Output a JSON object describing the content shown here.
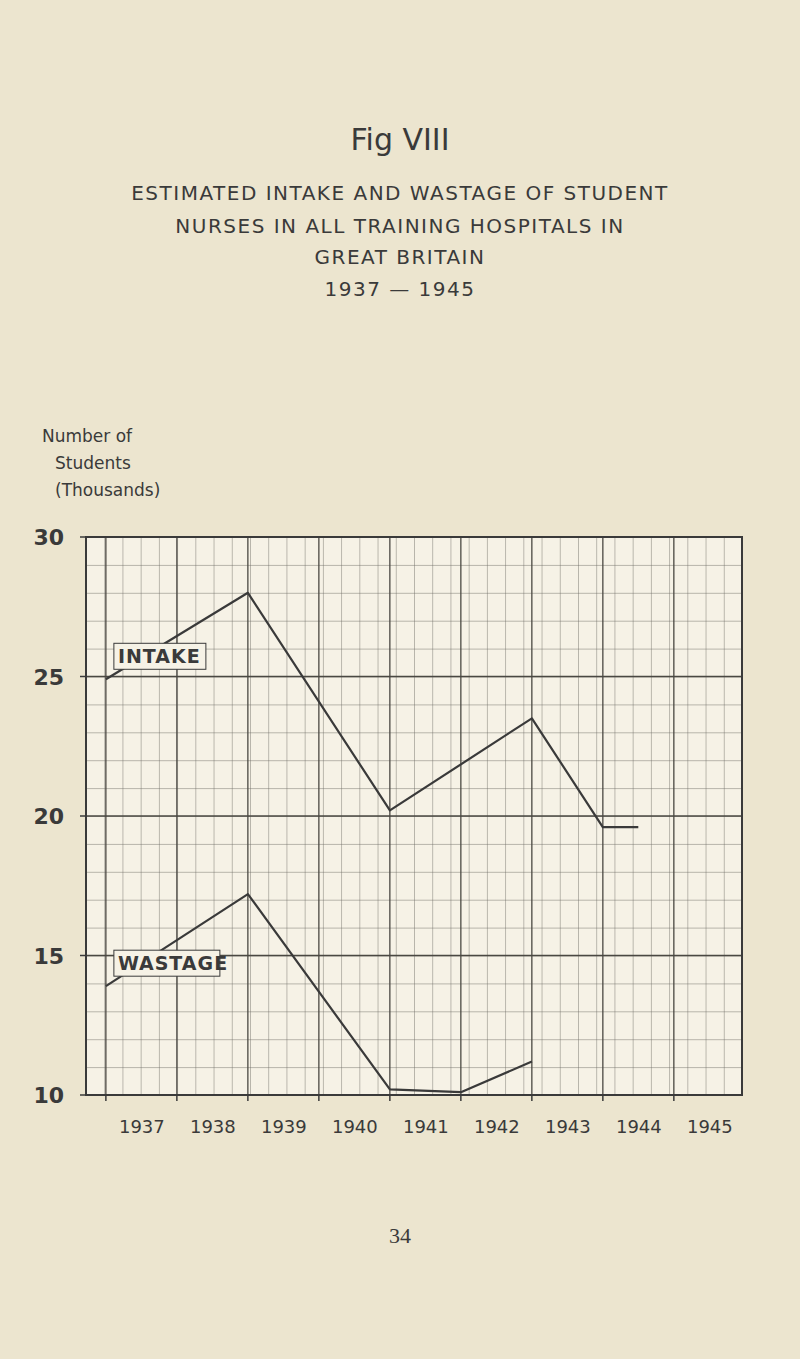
{
  "chart_data": {
    "type": "line",
    "figure_label": "Fig VIII",
    "title_lines": [
      "ESTIMATED INTAKE AND WASTAGE OF STUDENT",
      "NURSES IN ALL TRAINING HOSPITALS IN",
      "GREAT BRITAIN",
      "1937 — 1945"
    ],
    "y_label_lines": [
      "Number of",
      "Students",
      "(Thousands)"
    ],
    "page_number": "34",
    "xlim": [
      1936.72,
      1945.96
    ],
    "xticks": [
      1937,
      1938,
      1939,
      1940,
      1941,
      1942,
      1943,
      1944,
      1945
    ],
    "ylim": [
      10,
      30
    ],
    "yticks": [
      10,
      15,
      20,
      25,
      30
    ],
    "grid": true,
    "series": [
      {
        "name": "INTAKE",
        "color": "#3a3a3a",
        "x": [
          1937,
          1939,
          1941,
          1943,
          1944,
          1944.5
        ],
        "values": [
          24.9,
          28.0,
          20.2,
          23.5,
          19.6,
          19.6
        ]
      },
      {
        "name": "WASTAGE",
        "color": "#3a3a3a",
        "x": [
          1937,
          1939,
          1941,
          1942,
          1943
        ],
        "values": [
          13.9,
          17.2,
          10.2,
          10.1,
          11.2
        ]
      }
    ]
  }
}
